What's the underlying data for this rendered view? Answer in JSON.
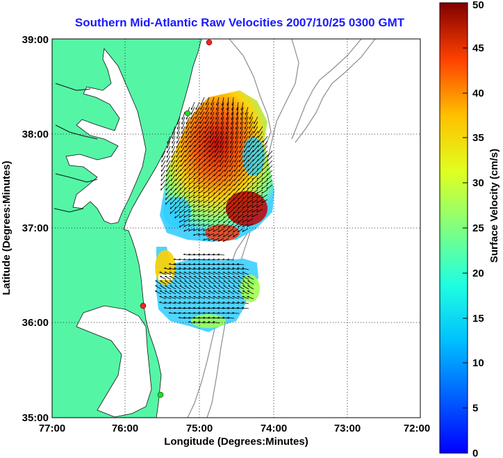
{
  "title": "Southern Mid-Atlantic Raw Velocities 2007/10/25 0300 GMT",
  "x_axis": {
    "label": "Longitude (Degrees:Minutes)",
    "ticks": [
      "77:00",
      "76:00",
      "75:00",
      "74:00",
      "73:00",
      "72:00"
    ]
  },
  "y_axis": {
    "label": "Latitude (Degrees:Minutes)",
    "ticks": [
      "39:00",
      "38:00",
      "37:00",
      "36:00",
      "35:00"
    ]
  },
  "colorbar": {
    "label": "Surface Velocity (cm/s)",
    "min": 0,
    "max": 50,
    "ticks": [
      "0",
      "5",
      "10",
      "15",
      "20",
      "25",
      "30",
      "35",
      "40",
      "45",
      "50"
    ]
  },
  "colors": {
    "title": "#1a1aff",
    "land": "#55f5a6",
    "bathymetry": "#8c8c8c",
    "station": "#ff2020",
    "station_alt": "#22dd22"
  },
  "grid": "dotted",
  "stations": [
    {
      "color": "red",
      "lon": -74.9,
      "lat": 38.95
    },
    {
      "color": "green",
      "lon": -75.1,
      "lat": 38.2
    },
    {
      "color": "red",
      "lon": -75.7,
      "lat": 36.15
    },
    {
      "color": "green",
      "lon": -75.45,
      "lat": 35.15
    }
  ]
}
